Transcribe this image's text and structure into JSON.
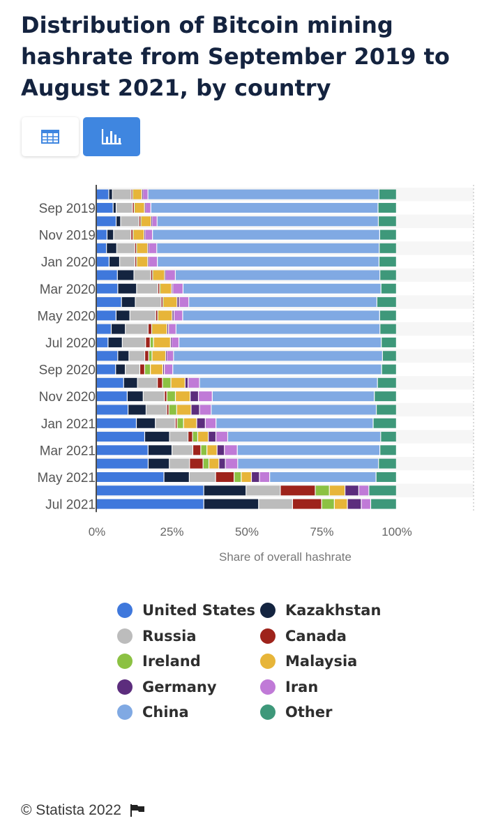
{
  "title": "Distribution of Bitcoin mining hashrate from September 2019 to August 2021, by country",
  "toggles": {
    "table_icon": "table-icon",
    "chart_icon": "bar-chart-icon"
  },
  "footer": {
    "copyright": "© Statista 2022",
    "flag_icon": "flag-icon"
  },
  "colors": {
    "accent": "#3f86e0",
    "United States": "#3f78dc",
    "Kazakhstan": "#142440",
    "Russia": "#bcbcbc",
    "Canada": "#9e231b",
    "Ireland": "#8cc143",
    "Malaysia": "#e7b539",
    "Germany": "#5c2d7d",
    "Iran": "#c07ad7",
    "China": "#80a9e3",
    "Other": "#3e987a"
  },
  "chart_data": {
    "type": "bar",
    "orientation": "horizontal",
    "stacked": true,
    "title": "Distribution of Bitcoin mining hashrate from September 2019 to August 2021, by country",
    "xlabel": "Share of overall hashrate",
    "ylabel": "",
    "xlim": [
      0,
      100
    ],
    "x_ticks": [
      "0%",
      "25%",
      "50%",
      "75%",
      "100%"
    ],
    "y_tick_labels": [
      "Sep 2019",
      "Nov 2019",
      "Jan 2020",
      "Mar 2020",
      "May 2020",
      "Jul 2020",
      "Sep 2020",
      "Nov 2020",
      "Jan 2021",
      "Mar 2021",
      "May 2021",
      "Jul 2021"
    ],
    "grid": true,
    "legend_position": "bottom",
    "categories": [
      "Aug 2019",
      "Sep 2019",
      "Oct 2019",
      "Nov 2019",
      "Dec 2019",
      "Jan 2020",
      "Feb 2020",
      "Mar 2020",
      "Apr 2020",
      "May 2020",
      "Jun 2020",
      "Jul 2020",
      "Aug 2020",
      "Sep 2020",
      "Oct 2020",
      "Nov 2020",
      "Dec 2020",
      "Jan 2021",
      "Feb 2021",
      "Mar 2021",
      "Apr 2021",
      "May 2021",
      "Jun 2021",
      "Jul 2021"
    ],
    "series": [
      {
        "name": "United States",
        "values": [
          4.0,
          5.5,
          6.5,
          3.5,
          3.3,
          4.2,
          6.8,
          7.0,
          8.3,
          6.5,
          4.9,
          3.8,
          7.0,
          6.3,
          9.0,
          10.0,
          10.5,
          13.0,
          15.9,
          16.8,
          17.6,
          21.8,
          35.0,
          35.4
        ]
      },
      {
        "name": "Kazakhstan",
        "values": [
          1.2,
          1.0,
          1.5,
          2.2,
          3.4,
          3.5,
          5.4,
          6.2,
          4.6,
          4.6,
          4.7,
          4.7,
          3.7,
          3.2,
          4.6,
          5.2,
          6.0,
          6.2,
          8.2,
          7.8,
          7.2,
          8.2,
          13.8,
          18.1
        ]
      },
      {
        "name": "Russia",
        "values": [
          6.1,
          5.4,
          6.1,
          5.8,
          6.0,
          5.1,
          5.5,
          7.0,
          8.6,
          8.6,
          7.6,
          7.7,
          5.2,
          4.8,
          6.6,
          6.9,
          6.9,
          6.5,
          6.1,
          6.8,
          6.9,
          8.5,
          11.2,
          11.2
        ]
      },
      {
        "name": "Canada",
        "values": [
          0.5,
          0.6,
          0.6,
          0.7,
          0.6,
          0.6,
          0.6,
          0.6,
          0.6,
          0.7,
          1.2,
          1.5,
          1.3,
          1.6,
          1.7,
          0.8,
          0.7,
          0.6,
          1.5,
          2.6,
          4.6,
          6.0,
          11.4,
          9.6
        ]
      },
      {
        "name": "Ireland",
        "values": [
          0.1,
          0.1,
          0.1,
          0.1,
          0.1,
          0.1,
          0.1,
          0.2,
          0.1,
          0.1,
          0.1,
          1.1,
          1.1,
          1.9,
          2.8,
          2.8,
          2.6,
          2.1,
          1.7,
          2.0,
          2.0,
          2.3,
          4.6,
          4.2
        ]
      },
      {
        "name": "Malaysia",
        "values": [
          2.9,
          3.3,
          3.3,
          3.6,
          3.6,
          3.6,
          3.8,
          3.7,
          4.6,
          4.7,
          5.0,
          5.6,
          4.5,
          4.1,
          4.7,
          4.8,
          4.8,
          4.3,
          3.5,
          3.3,
          3.4,
          3.3,
          5.1,
          4.3
        ]
      },
      {
        "name": "Germany",
        "values": [
          0.3,
          0.3,
          0.3,
          0.3,
          0.3,
          0.3,
          0.3,
          0.4,
          0.7,
          0.6,
          0.5,
          0.3,
          0.3,
          0.5,
          1.0,
          2.7,
          2.8,
          2.8,
          2.5,
          2.4,
          2.2,
          2.6,
          4.5,
          4.6
        ]
      },
      {
        "name": "Iran",
        "values": [
          1.7,
          1.8,
          1.7,
          2.5,
          2.7,
          2.9,
          3.2,
          3.4,
          3.2,
          2.9,
          2.5,
          2.5,
          2.3,
          2.8,
          3.8,
          4.5,
          3.9,
          3.5,
          3.9,
          4.2,
          4.2,
          3.3,
          3.3,
          3.1
        ]
      },
      {
        "name": "China",
        "values": [
          75.5,
          75.3,
          73.4,
          75.9,
          73.9,
          74.0,
          66.7,
          65.2,
          62.6,
          65.6,
          68.0,
          66.8,
          68.9,
          69.0,
          59.1,
          52.8,
          55.0,
          51.3,
          50.5,
          46.5,
          48.0,
          34.4,
          0,
          0
        ]
      },
      {
        "name": "Other",
        "values": [
          5.7,
          6.1,
          6.0,
          5.6,
          5.7,
          5.8,
          5.4,
          5.1,
          6.5,
          5.6,
          5.5,
          5.0,
          4.6,
          4.9,
          6.3,
          7.2,
          6.7,
          7.6,
          5.2,
          5.4,
          6.1,
          6.6,
          9.0,
          8.5
        ]
      }
    ]
  }
}
